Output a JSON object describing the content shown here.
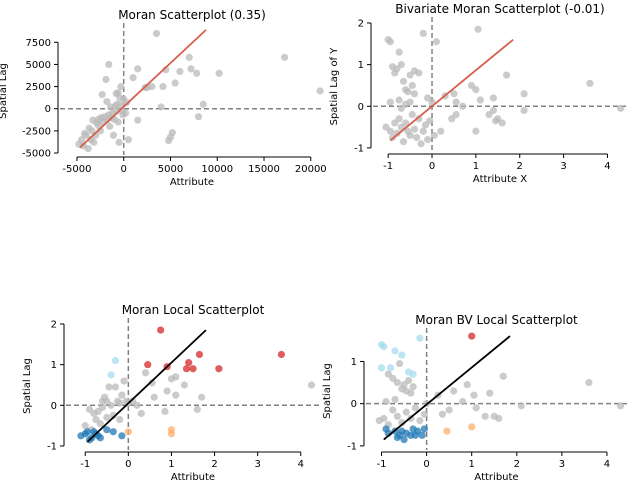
{
  "chart_data": [
    {
      "type": "scatter",
      "title": "Moran Scatterplot (0.35)",
      "xlabel": "Attribute",
      "ylabel": "Spatial Lag",
      "xlim": [
        -6600,
        21200
      ],
      "ylim": [
        -5000,
        9000
      ],
      "xticks": [
        -5000,
        0,
        5000,
        10000,
        15000,
        20000
      ],
      "yticks": [
        -5000,
        -2500,
        0,
        2500,
        5000,
        7500
      ],
      "reference_lines": {
        "x": 0,
        "y": 0,
        "style": "dashed",
        "color": "#808080"
      },
      "fit_line": {
        "x": [
          -4700,
          8800
        ],
        "y": [
          -4400,
          8900
        ],
        "color": "#d6604d"
      },
      "point_color": "#bababa",
      "points": [
        [
          -4800,
          -4000
        ],
        [
          -4500,
          -3500
        ],
        [
          -4300,
          -4200
        ],
        [
          -4200,
          -2800
        ],
        [
          -4000,
          -3000
        ],
        [
          -3800,
          -4500
        ],
        [
          -3700,
          -2200
        ],
        [
          -3500,
          -3500
        ],
        [
          -3400,
          -2500
        ],
        [
          -3200,
          -3800
        ],
        [
          -3000,
          -3000
        ],
        [
          -2900,
          -1600
        ],
        [
          -2700,
          -1900
        ],
        [
          -2500,
          -2500
        ],
        [
          -2400,
          -1000
        ],
        [
          -2200,
          -1500
        ],
        [
          -2000,
          -900
        ],
        [
          -1800,
          -1300
        ],
        [
          -1600,
          -700
        ],
        [
          -1500,
          -2000
        ],
        [
          -1400,
          200
        ],
        [
          -1300,
          -1000
        ],
        [
          -1200,
          -500
        ],
        [
          -1100,
          -3000
        ],
        [
          -1000,
          -1200
        ],
        [
          -900,
          300
        ],
        [
          -800,
          -300
        ],
        [
          -700,
          500
        ],
        [
          -600,
          -1500
        ],
        [
          -500,
          -3800
        ],
        [
          -400,
          1200
        ],
        [
          -300,
          2500
        ],
        [
          -200,
          400
        ],
        [
          -100,
          -700
        ],
        [
          0,
          1100
        ],
        [
          200,
          -500
        ],
        [
          300,
          700
        ],
        [
          500,
          -3500
        ],
        [
          -1800,
          800
        ],
        [
          -1900,
          3300
        ],
        [
          -2300,
          1600
        ],
        [
          -1600,
          5000
        ],
        [
          -800,
          1700
        ],
        [
          -600,
          1800
        ],
        [
          -200,
          -200
        ],
        [
          1000,
          3500
        ],
        [
          1500,
          4500
        ],
        [
          1500,
          -1300
        ],
        [
          2500,
          2400
        ],
        [
          3000,
          2500
        ],
        [
          3500,
          8500
        ],
        [
          4000,
          200
        ],
        [
          4200,
          2500
        ],
        [
          4500,
          4400
        ],
        [
          4800,
          -3600
        ],
        [
          5000,
          -3200
        ],
        [
          5200,
          -2700
        ],
        [
          5500,
          2900
        ],
        [
          6000,
          4200
        ],
        [
          7000,
          5800
        ],
        [
          7200,
          4500
        ],
        [
          7800,
          4000
        ],
        [
          8000,
          -900
        ],
        [
          8500,
          500
        ],
        [
          10200,
          4000
        ],
        [
          17200,
          5800
        ],
        [
          21000,
          2000
        ],
        [
          2300,
          2400
        ],
        [
          -3300,
          -1300
        ],
        [
          -2700,
          -1200
        ]
      ]
    },
    {
      "type": "scatter",
      "title": "Bivariate Moran Scatterplot (-0.01)",
      "xlabel": "Attribute X",
      "ylabel": "Spatial Lag of Y",
      "xlim": [
        -1.3,
        4.4
      ],
      "ylim": [
        -1.05,
        2.0
      ],
      "xticks": [
        -1,
        0,
        1,
        2,
        3,
        4
      ],
      "yticks": [
        -1,
        0,
        1,
        2
      ],
      "reference_lines": {
        "x": 0,
        "y": 0,
        "style": "dashed",
        "color": "#808080"
      },
      "fit_line": {
        "x": [
          -0.95,
          1.85
        ],
        "y": [
          -0.82,
          1.6
        ],
        "color": "#d6604d"
      },
      "point_color": "#bababa",
      "points": [
        [
          -1.0,
          1.6
        ],
        [
          -0.95,
          1.55
        ],
        [
          -0.9,
          0.95
        ],
        [
          -0.85,
          0.8
        ],
        [
          -0.8,
          0.9
        ],
        [
          -0.75,
          1.3
        ],
        [
          -0.7,
          1.0
        ],
        [
          -0.65,
          0.6
        ],
        [
          -0.6,
          0.4
        ],
        [
          -0.55,
          0.35
        ],
        [
          -0.5,
          0.75
        ],
        [
          -0.45,
          0.5
        ],
        [
          -0.4,
          0.85
        ],
        [
          -0.3,
          0.8
        ],
        [
          -0.2,
          1.75
        ],
        [
          -0.1,
          0.2
        ],
        [
          -1.05,
          -0.5
        ],
        [
          -0.95,
          -0.6
        ],
        [
          -0.9,
          -0.75
        ],
        [
          -0.85,
          -0.4
        ],
        [
          -0.8,
          -0.65
        ],
        [
          -0.75,
          -0.3
        ],
        [
          -0.7,
          -0.5
        ],
        [
          -0.65,
          -0.85
        ],
        [
          -0.6,
          -0.4
        ],
        [
          -0.55,
          -0.6
        ],
        [
          -0.5,
          -0.7
        ],
        [
          -0.45,
          -0.2
        ],
        [
          -0.4,
          -0.55
        ],
        [
          -0.35,
          -0.75
        ],
        [
          -0.3,
          -0.3
        ],
        [
          -0.25,
          -0.9
        ],
        [
          -0.2,
          -0.6
        ],
        [
          -0.15,
          -0.45
        ],
        [
          -0.1,
          -0.8
        ],
        [
          -0.05,
          -0.35
        ],
        [
          0.0,
          0.1
        ],
        [
          0.05,
          -0.7
        ],
        [
          0.1,
          1.55
        ],
        [
          0.2,
          -0.6
        ],
        [
          0.3,
          0.25
        ],
        [
          0.45,
          -0.3
        ],
        [
          0.5,
          0.3
        ],
        [
          0.55,
          -0.2
        ],
        [
          0.7,
          0.0
        ],
        [
          0.9,
          0.5
        ],
        [
          1.0,
          0.4
        ],
        [
          1.0,
          -0.6
        ],
        [
          1.05,
          1.85
        ],
        [
          1.1,
          0.15
        ],
        [
          1.3,
          -0.2
        ],
        [
          1.4,
          0.2
        ],
        [
          1.45,
          -0.35
        ],
        [
          1.5,
          -0.3
        ],
        [
          1.6,
          -0.4
        ],
        [
          1.7,
          0.75
        ],
        [
          2.1,
          -0.1
        ],
        [
          2.1,
          0.3
        ],
        [
          3.6,
          0.55
        ],
        [
          4.3,
          -0.05
        ],
        [
          -0.75,
          0.15
        ],
        [
          -0.6,
          0.05
        ],
        [
          -0.95,
          0.1
        ],
        [
          -0.7,
          -0.05
        ],
        [
          -0.4,
          0.3
        ],
        [
          0.55,
          0.1
        ],
        [
          1.4,
          -0.1
        ],
        [
          -0.5,
          0.1
        ]
      ]
    },
    {
      "type": "scatter",
      "title": "Moran Local Scatterplot",
      "xlabel": "Attribute",
      "ylabel": "Spatial Lag",
      "xlim": [
        -1.4,
        4.4
      ],
      "ylim": [
        -1.05,
        2.0
      ],
      "xticks": [
        -1,
        0,
        1,
        2,
        3,
        4
      ],
      "yticks": [
        -1,
        0,
        1,
        2
      ],
      "reference_lines": {
        "x": 0,
        "y": 0,
        "style": "dashed",
        "color": "#808080"
      },
      "fit_line": {
        "x": [
          -0.95,
          1.8
        ],
        "y": [
          -0.9,
          1.85
        ],
        "color": "#000000"
      },
      "groups": [
        {
          "color": "#d62728",
          "points": [
            [
              0.75,
              1.85
            ],
            [
              0.45,
              1.0
            ],
            [
              0.9,
              0.95
            ],
            [
              1.4,
              1.05
            ],
            [
              1.5,
              0.9
            ],
            [
              1.35,
              0.9
            ],
            [
              1.65,
              1.25
            ],
            [
              2.1,
              0.9
            ],
            [
              3.55,
              1.25
            ]
          ]
        },
        {
          "color": "#1f77b4",
          "points": [
            [
              -1.1,
              -0.75
            ],
            [
              -1.0,
              -0.7
            ],
            [
              -0.95,
              -0.65
            ],
            [
              -0.9,
              -0.85
            ],
            [
              -0.85,
              -0.8
            ],
            [
              -0.8,
              -0.65
            ],
            [
              -0.75,
              -0.7
            ],
            [
              -0.7,
              -0.75
            ],
            [
              -0.65,
              -0.8
            ],
            [
              -0.5,
              -0.6
            ],
            [
              -0.35,
              -0.65
            ],
            [
              -0.15,
              -0.75
            ]
          ]
        },
        {
          "color": "#a6dbef",
          "points": [
            [
              -0.3,
              1.1
            ],
            [
              -0.4,
              0.75
            ]
          ]
        },
        {
          "color": "#fdae6b",
          "points": [
            [
              0.0,
              -0.65
            ],
            [
              1.0,
              -0.7
            ],
            [
              1.0,
              -0.6
            ]
          ]
        },
        {
          "color": "#bababa",
          "points": [
            [
              -1.0,
              -0.5
            ],
            [
              -0.9,
              -0.1
            ],
            [
              -0.85,
              -0.6
            ],
            [
              -0.8,
              -0.2
            ],
            [
              -0.75,
              -0.35
            ],
            [
              -0.7,
              -0.15
            ],
            [
              -0.65,
              -0.45
            ],
            [
              -0.6,
              -0.05
            ],
            [
              -0.55,
              0.2
            ],
            [
              -0.5,
              -0.3
            ],
            [
              -0.45,
              0.45
            ],
            [
              -0.4,
              0.0
            ],
            [
              -0.35,
              -0.25
            ],
            [
              -0.3,
              0.45
            ],
            [
              -0.25,
              0.1
            ],
            [
              -0.2,
              -0.35
            ],
            [
              -0.15,
              0.25
            ],
            [
              -0.1,
              0.6
            ],
            [
              -0.05,
              0.1
            ],
            [
              0.0,
              0.05
            ],
            [
              0.2,
              0.0
            ],
            [
              0.3,
              -0.2
            ],
            [
              0.4,
              0.8
            ],
            [
              0.55,
              0.55
            ],
            [
              0.6,
              0.2
            ],
            [
              0.85,
              -0.15
            ],
            [
              0.9,
              0.35
            ],
            [
              1.0,
              0.65
            ],
            [
              1.1,
              0.7
            ],
            [
              1.1,
              0.25
            ],
            [
              1.3,
              0.5
            ],
            [
              1.6,
              -0.1
            ],
            [
              1.7,
              0.2
            ],
            [
              4.25,
              0.5
            ],
            [
              -0.6,
              0.1
            ],
            [
              -0.5,
              0.1
            ],
            [
              0.1,
              0.1
            ],
            [
              -0.2,
              0.05
            ]
          ]
        }
      ]
    },
    {
      "type": "scatter",
      "title": "Moran BV Local Scatterplot",
      "xlabel": "Attribute",
      "ylabel": "Spatial Lag",
      "xlim": [
        -1.3,
        4.4
      ],
      "ylim": [
        -1.05,
        1.65
      ],
      "xticks": [
        -1,
        0,
        1,
        2,
        3,
        4
      ],
      "yticks": [
        -1,
        0,
        1
      ],
      "reference_lines": {
        "x": 0,
        "y": 0,
        "style": "dashed",
        "color": "#808080"
      },
      "fit_line": {
        "x": [
          -0.95,
          1.85
        ],
        "y": [
          -0.85,
          1.6
        ],
        "color": "#000000"
      },
      "groups": [
        {
          "color": "#d62728",
          "points": [
            [
              1.0,
              1.6
            ]
          ]
        },
        {
          "color": "#1f77b4",
          "points": [
            [
              -0.9,
              -0.6
            ],
            [
              -0.85,
              -0.7
            ],
            [
              -0.7,
              -0.65
            ],
            [
              -0.65,
              -0.8
            ],
            [
              -0.55,
              -0.65
            ],
            [
              -0.5,
              -0.85
            ],
            [
              -0.45,
              -0.7
            ],
            [
              -0.35,
              -0.75
            ],
            [
              -0.3,
              -0.6
            ],
            [
              -0.25,
              -0.75
            ],
            [
              -0.2,
              -0.65
            ],
            [
              -0.1,
              -0.75
            ],
            [
              -0.05,
              -0.6
            ],
            [
              -0.6,
              -0.75
            ]
          ]
        },
        {
          "color": "#a6dbef",
          "points": [
            [
              -1.0,
              1.4
            ],
            [
              -0.95,
              1.35
            ],
            [
              -0.7,
              1.25
            ],
            [
              -0.55,
              1.15
            ],
            [
              -1.0,
              0.85
            ],
            [
              -0.8,
              0.85
            ],
            [
              -0.4,
              0.75
            ],
            [
              -0.3,
              0.7
            ],
            [
              -0.15,
              1.55
            ]
          ]
        },
        {
          "color": "#fdae6b",
          "points": [
            [
              0.45,
              -0.65
            ],
            [
              1.0,
              -0.55
            ]
          ]
        },
        {
          "color": "#bababa",
          "points": [
            [
              -0.85,
              0.7
            ],
            [
              -0.75,
              0.6
            ],
            [
              -0.65,
              0.5
            ],
            [
              -0.6,
              0.95
            ],
            [
              -0.55,
              0.35
            ],
            [
              -0.5,
              0.45
            ],
            [
              -0.45,
              0.3
            ],
            [
              -0.4,
              0.55
            ],
            [
              -0.35,
              0.25
            ],
            [
              -0.3,
              0.4
            ],
            [
              -1.05,
              -0.4
            ],
            [
              -0.95,
              -0.35
            ],
            [
              -0.85,
              -0.5
            ],
            [
              -0.75,
              -0.15
            ],
            [
              -0.65,
              -0.3
            ],
            [
              -0.55,
              -0.45
            ],
            [
              -0.45,
              -0.2
            ],
            [
              -0.35,
              -0.35
            ],
            [
              -0.25,
              -0.1
            ],
            [
              -0.15,
              -0.4
            ],
            [
              -0.05,
              -0.25
            ],
            [
              0.0,
              0.0
            ],
            [
              0.25,
              0.2
            ],
            [
              0.35,
              -0.25
            ],
            [
              0.5,
              -0.15
            ],
            [
              0.6,
              0.3
            ],
            [
              0.8,
              0.05
            ],
            [
              0.9,
              0.45
            ],
            [
              1.05,
              0.2
            ],
            [
              1.1,
              -0.1
            ],
            [
              1.3,
              -0.3
            ],
            [
              1.4,
              0.25
            ],
            [
              1.5,
              -0.3
            ],
            [
              1.6,
              -0.35
            ],
            [
              1.7,
              0.65
            ],
            [
              2.1,
              -0.05
            ],
            [
              3.6,
              0.5
            ],
            [
              4.3,
              -0.05
            ],
            [
              -0.7,
              0.1
            ],
            [
              -0.9,
              0.05
            ]
          ]
        }
      ]
    }
  ]
}
